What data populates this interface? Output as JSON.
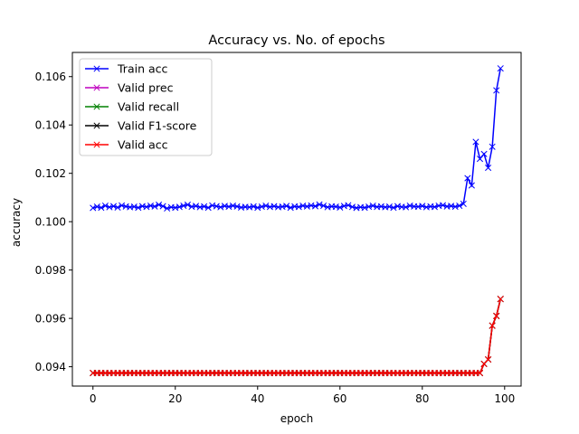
{
  "chart_data": {
    "type": "line",
    "title": "Accuracy vs. No. of epochs",
    "xlabel": "epoch",
    "ylabel": "accuracy",
    "xlim": [
      -5,
      104
    ],
    "ylim": [
      0.0932,
      0.107
    ],
    "xticks": [
      0,
      20,
      40,
      60,
      80,
      100
    ],
    "xtick_labels": [
      "0",
      "20",
      "40",
      "60",
      "80",
      "100"
    ],
    "yticks": [
      0.094,
      0.096,
      0.098,
      0.1,
      0.102,
      0.104,
      0.106
    ],
    "ytick_labels": [
      "0.094",
      "0.096",
      "0.098",
      "0.100",
      "0.102",
      "0.104",
      "0.106"
    ],
    "legend_position": "top-left",
    "x": [
      0,
      1,
      2,
      3,
      4,
      5,
      6,
      7,
      8,
      9,
      10,
      11,
      12,
      13,
      14,
      15,
      16,
      17,
      18,
      19,
      20,
      21,
      22,
      23,
      24,
      25,
      26,
      27,
      28,
      29,
      30,
      31,
      32,
      33,
      34,
      35,
      36,
      37,
      38,
      39,
      40,
      41,
      42,
      43,
      44,
      45,
      46,
      47,
      48,
      49,
      50,
      51,
      52,
      53,
      54,
      55,
      56,
      57,
      58,
      59,
      60,
      61,
      62,
      63,
      64,
      65,
      66,
      67,
      68,
      69,
      70,
      71,
      72,
      73,
      74,
      75,
      76,
      77,
      78,
      79,
      80,
      81,
      82,
      83,
      84,
      85,
      86,
      87,
      88,
      89,
      90,
      91,
      92,
      93,
      94,
      95,
      96,
      97,
      98,
      99
    ],
    "series": [
      {
        "name": "Train acc",
        "color": "#0000ff",
        "values": [
          0.10057,
          0.10062,
          0.10058,
          0.10066,
          0.1006,
          0.10064,
          0.10059,
          0.10067,
          0.10063,
          0.1006,
          0.10062,
          0.10058,
          0.10064,
          0.10061,
          0.10066,
          0.10063,
          0.1007,
          0.10064,
          0.10055,
          0.1006,
          0.10058,
          0.10061,
          0.10066,
          0.1007,
          0.10062,
          0.10065,
          0.1006,
          0.10063,
          0.10058,
          0.10067,
          0.10064,
          0.1006,
          0.10065,
          0.10062,
          0.10066,
          0.10063,
          0.10059,
          0.10061,
          0.1006,
          0.10063,
          0.10058,
          0.10062,
          0.10066,
          0.10061,
          0.10064,
          0.1006,
          0.10062,
          0.10065,
          0.10058,
          0.10063,
          0.10061,
          0.10066,
          0.10063,
          0.10067,
          0.10064,
          0.10071,
          0.10066,
          0.1006,
          0.10063,
          0.10062,
          0.10059,
          0.10065,
          0.10068,
          0.10061,
          0.10057,
          0.1006,
          0.10058,
          0.10062,
          0.10066,
          0.10061,
          0.10063,
          0.1006,
          0.10062,
          0.10058,
          0.10064,
          0.10061,
          0.1006,
          0.10066,
          0.10063,
          0.10062,
          0.10065,
          0.1006,
          0.10063,
          0.10061,
          0.10066,
          0.10068,
          0.10063,
          0.10065,
          0.10062,
          0.10066,
          0.10074,
          0.1018,
          0.1015,
          0.1033,
          0.1026,
          0.1028,
          0.10223,
          0.1031,
          0.10543,
          0.10634
        ]
      },
      {
        "name": "Valid prec",
        "color": "#bf00bf",
        "values": [
          0.09374,
          0.09374,
          0.09374,
          0.09374,
          0.09374,
          0.09374,
          0.09374,
          0.09374,
          0.09374,
          0.09374,
          0.09374,
          0.09374,
          0.09374,
          0.09374,
          0.09374,
          0.09374,
          0.09374,
          0.09374,
          0.09374,
          0.09374,
          0.09374,
          0.09374,
          0.09374,
          0.09374,
          0.09374,
          0.09374,
          0.09374,
          0.09374,
          0.09374,
          0.09374,
          0.09374,
          0.09374,
          0.09374,
          0.09374,
          0.09374,
          0.09374,
          0.09374,
          0.09374,
          0.09374,
          0.09374,
          0.09374,
          0.09374,
          0.09374,
          0.09374,
          0.09374,
          0.09374,
          0.09374,
          0.09374,
          0.09374,
          0.09374,
          0.09374,
          0.09374,
          0.09374,
          0.09374,
          0.09374,
          0.09374,
          0.09374,
          0.09374,
          0.09374,
          0.09374,
          0.09374,
          0.09374,
          0.09374,
          0.09374,
          0.09374,
          0.09374,
          0.09374,
          0.09374,
          0.09374,
          0.09374,
          0.09374,
          0.09374,
          0.09374,
          0.09374,
          0.09374,
          0.09374,
          0.09374,
          0.09374,
          0.09374,
          0.09374,
          0.09374,
          0.09374,
          0.09374,
          0.09374,
          0.09374,
          0.09374,
          0.09374,
          0.09374,
          0.09374,
          0.09374,
          0.09374,
          0.09374,
          0.09374,
          0.09374,
          0.09374,
          0.09412,
          0.0943,
          0.0957,
          0.0961,
          0.0968
        ]
      },
      {
        "name": "Valid recall",
        "color": "#008000",
        "values": [
          0.09374,
          0.09374,
          0.09374,
          0.09374,
          0.09374,
          0.09374,
          0.09374,
          0.09374,
          0.09374,
          0.09374,
          0.09374,
          0.09374,
          0.09374,
          0.09374,
          0.09374,
          0.09374,
          0.09374,
          0.09374,
          0.09374,
          0.09374,
          0.09374,
          0.09374,
          0.09374,
          0.09374,
          0.09374,
          0.09374,
          0.09374,
          0.09374,
          0.09374,
          0.09374,
          0.09374,
          0.09374,
          0.09374,
          0.09374,
          0.09374,
          0.09374,
          0.09374,
          0.09374,
          0.09374,
          0.09374,
          0.09374,
          0.09374,
          0.09374,
          0.09374,
          0.09374,
          0.09374,
          0.09374,
          0.09374,
          0.09374,
          0.09374,
          0.09374,
          0.09374,
          0.09374,
          0.09374,
          0.09374,
          0.09374,
          0.09374,
          0.09374,
          0.09374,
          0.09374,
          0.09374,
          0.09374,
          0.09374,
          0.09374,
          0.09374,
          0.09374,
          0.09374,
          0.09374,
          0.09374,
          0.09374,
          0.09374,
          0.09374,
          0.09374,
          0.09374,
          0.09374,
          0.09374,
          0.09374,
          0.09374,
          0.09374,
          0.09374,
          0.09374,
          0.09374,
          0.09374,
          0.09374,
          0.09374,
          0.09374,
          0.09374,
          0.09374,
          0.09374,
          0.09374,
          0.09374,
          0.09374,
          0.09374,
          0.09374,
          0.09374,
          0.09412,
          0.0943,
          0.0957,
          0.0961,
          0.0968
        ]
      },
      {
        "name": "Valid F1-score",
        "color": "#000000",
        "values": [
          0.09374,
          0.09374,
          0.09374,
          0.09374,
          0.09374,
          0.09374,
          0.09374,
          0.09374,
          0.09374,
          0.09374,
          0.09374,
          0.09374,
          0.09374,
          0.09374,
          0.09374,
          0.09374,
          0.09374,
          0.09374,
          0.09374,
          0.09374,
          0.09374,
          0.09374,
          0.09374,
          0.09374,
          0.09374,
          0.09374,
          0.09374,
          0.09374,
          0.09374,
          0.09374,
          0.09374,
          0.09374,
          0.09374,
          0.09374,
          0.09374,
          0.09374,
          0.09374,
          0.09374,
          0.09374,
          0.09374,
          0.09374,
          0.09374,
          0.09374,
          0.09374,
          0.09374,
          0.09374,
          0.09374,
          0.09374,
          0.09374,
          0.09374,
          0.09374,
          0.09374,
          0.09374,
          0.09374,
          0.09374,
          0.09374,
          0.09374,
          0.09374,
          0.09374,
          0.09374,
          0.09374,
          0.09374,
          0.09374,
          0.09374,
          0.09374,
          0.09374,
          0.09374,
          0.09374,
          0.09374,
          0.09374,
          0.09374,
          0.09374,
          0.09374,
          0.09374,
          0.09374,
          0.09374,
          0.09374,
          0.09374,
          0.09374,
          0.09374,
          0.09374,
          0.09374,
          0.09374,
          0.09374,
          0.09374,
          0.09374,
          0.09374,
          0.09374,
          0.09374,
          0.09374,
          0.09374,
          0.09374,
          0.09374,
          0.09374,
          0.09374,
          0.09412,
          0.0943,
          0.0957,
          0.0961,
          0.0968
        ]
      },
      {
        "name": "Valid acc",
        "color": "#ff0000",
        "values": [
          0.09374,
          0.09374,
          0.09374,
          0.09374,
          0.09374,
          0.09374,
          0.09374,
          0.09374,
          0.09374,
          0.09374,
          0.09374,
          0.09374,
          0.09374,
          0.09374,
          0.09374,
          0.09374,
          0.09374,
          0.09374,
          0.09374,
          0.09374,
          0.09374,
          0.09374,
          0.09374,
          0.09374,
          0.09374,
          0.09374,
          0.09374,
          0.09374,
          0.09374,
          0.09374,
          0.09374,
          0.09374,
          0.09374,
          0.09374,
          0.09374,
          0.09374,
          0.09374,
          0.09374,
          0.09374,
          0.09374,
          0.09374,
          0.09374,
          0.09374,
          0.09374,
          0.09374,
          0.09374,
          0.09374,
          0.09374,
          0.09374,
          0.09374,
          0.09374,
          0.09374,
          0.09374,
          0.09374,
          0.09374,
          0.09374,
          0.09374,
          0.09374,
          0.09374,
          0.09374,
          0.09374,
          0.09374,
          0.09374,
          0.09374,
          0.09374,
          0.09374,
          0.09374,
          0.09374,
          0.09374,
          0.09374,
          0.09374,
          0.09374,
          0.09374,
          0.09374,
          0.09374,
          0.09374,
          0.09374,
          0.09374,
          0.09374,
          0.09374,
          0.09374,
          0.09374,
          0.09374,
          0.09374,
          0.09374,
          0.09374,
          0.09374,
          0.09374,
          0.09374,
          0.09374,
          0.09374,
          0.09374,
          0.09374,
          0.09374,
          0.09374,
          0.09412,
          0.0943,
          0.0957,
          0.0961,
          0.0968
        ]
      }
    ]
  }
}
